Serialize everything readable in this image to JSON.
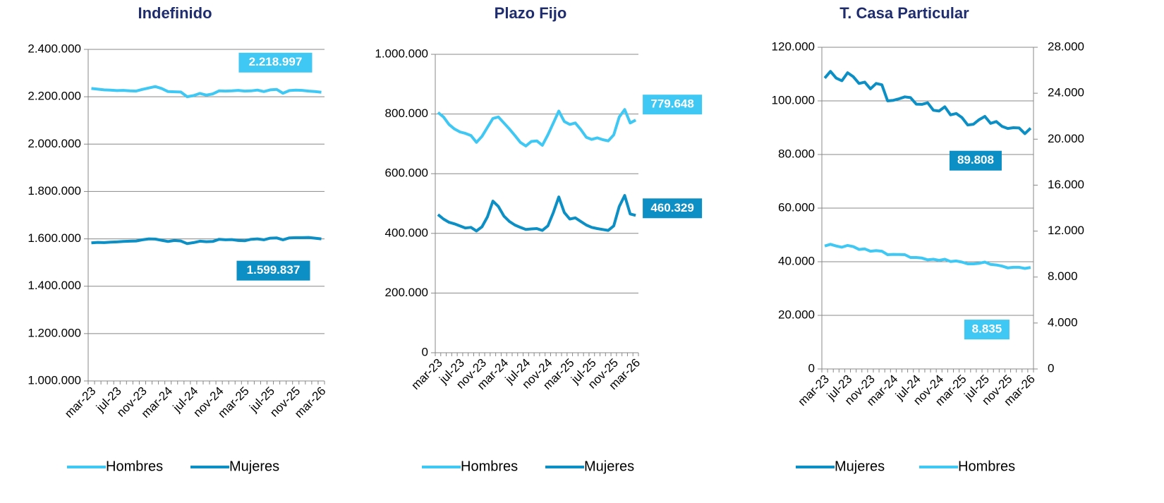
{
  "chart_data": [
    {
      "type": "line",
      "title": "Indefinido",
      "categories": [
        "mar-23",
        null,
        null,
        null,
        "jul-23",
        null,
        null,
        null,
        "nov-23",
        null,
        null,
        null,
        "mar-24",
        null,
        null,
        null,
        "jul-24",
        null,
        null,
        null,
        "nov-24",
        null,
        null,
        null,
        "mar-25",
        null,
        null,
        null,
        "jul-25",
        null,
        null,
        null,
        "nov-25",
        null,
        null,
        null,
        "mar-26"
      ],
      "ylim": [
        1000000,
        2400000
      ],
      "yticks": [
        {
          "value": 1000000,
          "label": "1.000.000"
        },
        {
          "value": 1200000,
          "label": "1.200.000"
        },
        {
          "value": 1400000,
          "label": "1.400.000"
        },
        {
          "value": 1600000,
          "label": "1.600.000"
        },
        {
          "value": 1800000,
          "label": "1.800.000"
        },
        {
          "value": 2000000,
          "label": "2.000.000"
        },
        {
          "value": 2200000,
          "label": "2.200.000"
        },
        {
          "value": 2400000,
          "label": "2.400.000"
        }
      ],
      "grid": true,
      "legend": "bottom",
      "series": [
        {
          "name": "Hombres",
          "color": "#3ec8f3",
          "values": [
            2235000,
            2232000,
            2229000,
            2228000,
            2226000,
            2227000,
            2225000,
            2224000,
            2231000,
            2237000,
            2243000,
            2235000,
            2222000,
            2221000,
            2220000,
            2200000,
            2205000,
            2214000,
            2207000,
            2212000,
            2225000,
            2224000,
            2225000,
            2227000,
            2224000,
            2225000,
            2228000,
            2222000,
            2229000,
            2231000,
            2215000,
            2226000,
            2228000,
            2227000,
            2224000,
            2222000,
            2218997
          ],
          "value_labels": [
            null,
            null,
            null,
            null,
            null,
            null,
            null,
            null,
            null,
            null,
            null,
            null,
            null,
            null,
            null,
            null,
            null,
            null,
            null,
            null,
            null,
            null,
            null,
            null,
            null,
            null,
            null,
            null,
            null,
            null,
            null,
            null,
            null,
            null,
            null,
            null,
            "2.218.997"
          ]
        },
        {
          "name": "Mujeres",
          "color": "#0b8fc4",
          "values": [
            1583000,
            1585000,
            1584000,
            1586000,
            1587000,
            1589000,
            1590000,
            1591000,
            1596000,
            1600000,
            1599000,
            1594000,
            1589000,
            1593000,
            1591000,
            1580000,
            1584000,
            1590000,
            1588000,
            1589000,
            1598000,
            1596000,
            1597000,
            1593000,
            1592000,
            1598000,
            1600000,
            1596000,
            1603000,
            1604000,
            1596000,
            1604000,
            1605000,
            1605000,
            1606000,
            1603000,
            1599837
          ],
          "value_labels": [
            null,
            null,
            null,
            null,
            null,
            null,
            null,
            null,
            null,
            null,
            null,
            null,
            null,
            null,
            null,
            null,
            null,
            null,
            null,
            null,
            null,
            null,
            null,
            null,
            null,
            null,
            null,
            null,
            null,
            null,
            null,
            null,
            null,
            null,
            null,
            null,
            "1.599.837"
          ]
        }
      ]
    },
    {
      "type": "line",
      "title": "Plazo Fijo",
      "categories": [
        "mar-23",
        null,
        null,
        null,
        "jul-23",
        null,
        null,
        null,
        "nov-23",
        null,
        null,
        null,
        "mar-24",
        null,
        null,
        null,
        "jul-24",
        null,
        null,
        null,
        "nov-24",
        null,
        null,
        null,
        "mar-25",
        null,
        null,
        null,
        "jul-25",
        null,
        null,
        null,
        "nov-25",
        null,
        null,
        null,
        "mar-26"
      ],
      "ylim": [
        0,
        1000000
      ],
      "yticks": [
        0,
        {
          "value": 200000,
          "label": "200.000"
        },
        {
          "value": 400000,
          "label": "400.000"
        },
        {
          "value": 600000,
          "label": "600.000"
        },
        {
          "value": 800000,
          "label": "800.000"
        },
        {
          "value": 1000000,
          "label": "1.000.000"
        }
      ],
      "grid": true,
      "legend": "bottom",
      "series": [
        {
          "name": "Hombres",
          "color": "#3ec8f3",
          "values": [
            805000,
            790000,
            765000,
            750000,
            740000,
            735000,
            728000,
            705000,
            725000,
            755000,
            785000,
            790000,
            770000,
            750000,
            728000,
            705000,
            693000,
            708000,
            710000,
            695000,
            730000,
            770000,
            810000,
            775000,
            765000,
            770000,
            748000,
            722000,
            715000,
            720000,
            714000,
            710000,
            730000,
            790000,
            815000,
            770000,
            779648
          ],
          "value_labels": [
            null,
            null,
            null,
            null,
            null,
            null,
            null,
            null,
            null,
            null,
            null,
            null,
            null,
            null,
            null,
            null,
            null,
            null,
            null,
            null,
            null,
            null,
            null,
            null,
            null,
            null,
            null,
            null,
            null,
            null,
            null,
            null,
            null,
            null,
            null,
            null,
            "779.648"
          ]
        },
        {
          "name": "Mujeres",
          "color": "#0b8fc4",
          "values": [
            463000,
            448000,
            437000,
            432000,
            425000,
            418000,
            420000,
            408000,
            422000,
            455000,
            508000,
            490000,
            458000,
            440000,
            428000,
            420000,
            413000,
            415000,
            416000,
            410000,
            425000,
            470000,
            522000,
            470000,
            448000,
            452000,
            440000,
            428000,
            420000,
            416000,
            413000,
            410000,
            425000,
            490000,
            527000,
            465000,
            460329
          ],
          "value_labels": [
            null,
            null,
            null,
            null,
            null,
            null,
            null,
            null,
            null,
            null,
            null,
            null,
            null,
            null,
            null,
            null,
            null,
            null,
            null,
            null,
            null,
            null,
            null,
            null,
            null,
            null,
            null,
            null,
            null,
            null,
            null,
            null,
            null,
            null,
            null,
            null,
            "460.329"
          ]
        }
      ]
    },
    {
      "type": "line",
      "title": "T. Casa Particular",
      "categories": [
        "mar-23",
        null,
        null,
        null,
        "jul-23",
        null,
        null,
        null,
        "nov-23",
        null,
        null,
        null,
        "mar-24",
        null,
        null,
        null,
        "jul-24",
        null,
        null,
        null,
        "nov-24",
        null,
        null,
        null,
        "mar-25",
        null,
        null,
        null,
        "jul-25",
        null,
        null,
        null,
        "nov-25",
        null,
        null,
        null,
        "mar-26"
      ],
      "ylim": [
        0,
        120000
      ],
      "yticks": [
        0,
        {
          "value": 20000,
          "label": "20.000"
        },
        {
          "value": 40000,
          "label": "40.000"
        },
        {
          "value": 60000,
          "label": "60.000"
        },
        {
          "value": 80000,
          "label": "80.000"
        },
        {
          "value": 100000,
          "label": "100.000"
        },
        {
          "value": 120000,
          "label": "120.000"
        }
      ],
      "y2lim": [
        0,
        28000
      ],
      "y2ticks": [
        0,
        {
          "value": 4000,
          "label": "4.000"
        },
        {
          "value": 8000,
          "label": "8.000"
        },
        {
          "value": 12000,
          "label": "12.000"
        },
        {
          "value": 16000,
          "label": "16.000"
        },
        {
          "value": 20000,
          "label": "20.000"
        },
        {
          "value": 24000,
          "label": "24.000"
        },
        {
          "value": 28000,
          "label": "28.000"
        }
      ],
      "grid": true,
      "legend": "bottom",
      "series": [
        {
          "name": "Mujeres",
          "color": "#0b8fc4",
          "values": [
            108500,
            111000,
            108500,
            107500,
            110500,
            109000,
            106500,
            107000,
            104500,
            106500,
            106000,
            100000,
            100200,
            100800,
            101500,
            101200,
            98800,
            98700,
            99300,
            96500,
            96200,
            97800,
            94800,
            95300,
            93800,
            91000,
            91300,
            93000,
            94200,
            91600,
            92300,
            90500,
            89700,
            90000,
            89900,
            87800,
            89808
          ],
          "value_labels": [
            null,
            null,
            null,
            null,
            null,
            null,
            null,
            null,
            null,
            null,
            null,
            null,
            null,
            null,
            null,
            null,
            null,
            null,
            null,
            null,
            null,
            null,
            null,
            null,
            null,
            null,
            null,
            null,
            null,
            null,
            null,
            null,
            null,
            null,
            null,
            null,
            "89.808"
          ]
        },
        {
          "name": "Hombres",
          "color": "#3ec8f3",
          "axis": "y2",
          "values": [
            10700,
            10850,
            10700,
            10600,
            10750,
            10650,
            10400,
            10450,
            10250,
            10300,
            10250,
            9950,
            9970,
            9960,
            9950,
            9700,
            9700,
            9650,
            9500,
            9550,
            9450,
            9550,
            9350,
            9400,
            9300,
            9150,
            9150,
            9200,
            9300,
            9100,
            9050,
            8950,
            8800,
            8850,
            8850,
            8750,
            8835
          ],
          "value_labels": [
            null,
            null,
            null,
            null,
            null,
            null,
            null,
            null,
            null,
            null,
            null,
            null,
            null,
            null,
            null,
            null,
            null,
            null,
            null,
            null,
            null,
            null,
            null,
            null,
            null,
            null,
            null,
            null,
            null,
            null,
            null,
            null,
            null,
            null,
            null,
            null,
            "8.835"
          ]
        }
      ]
    }
  ]
}
